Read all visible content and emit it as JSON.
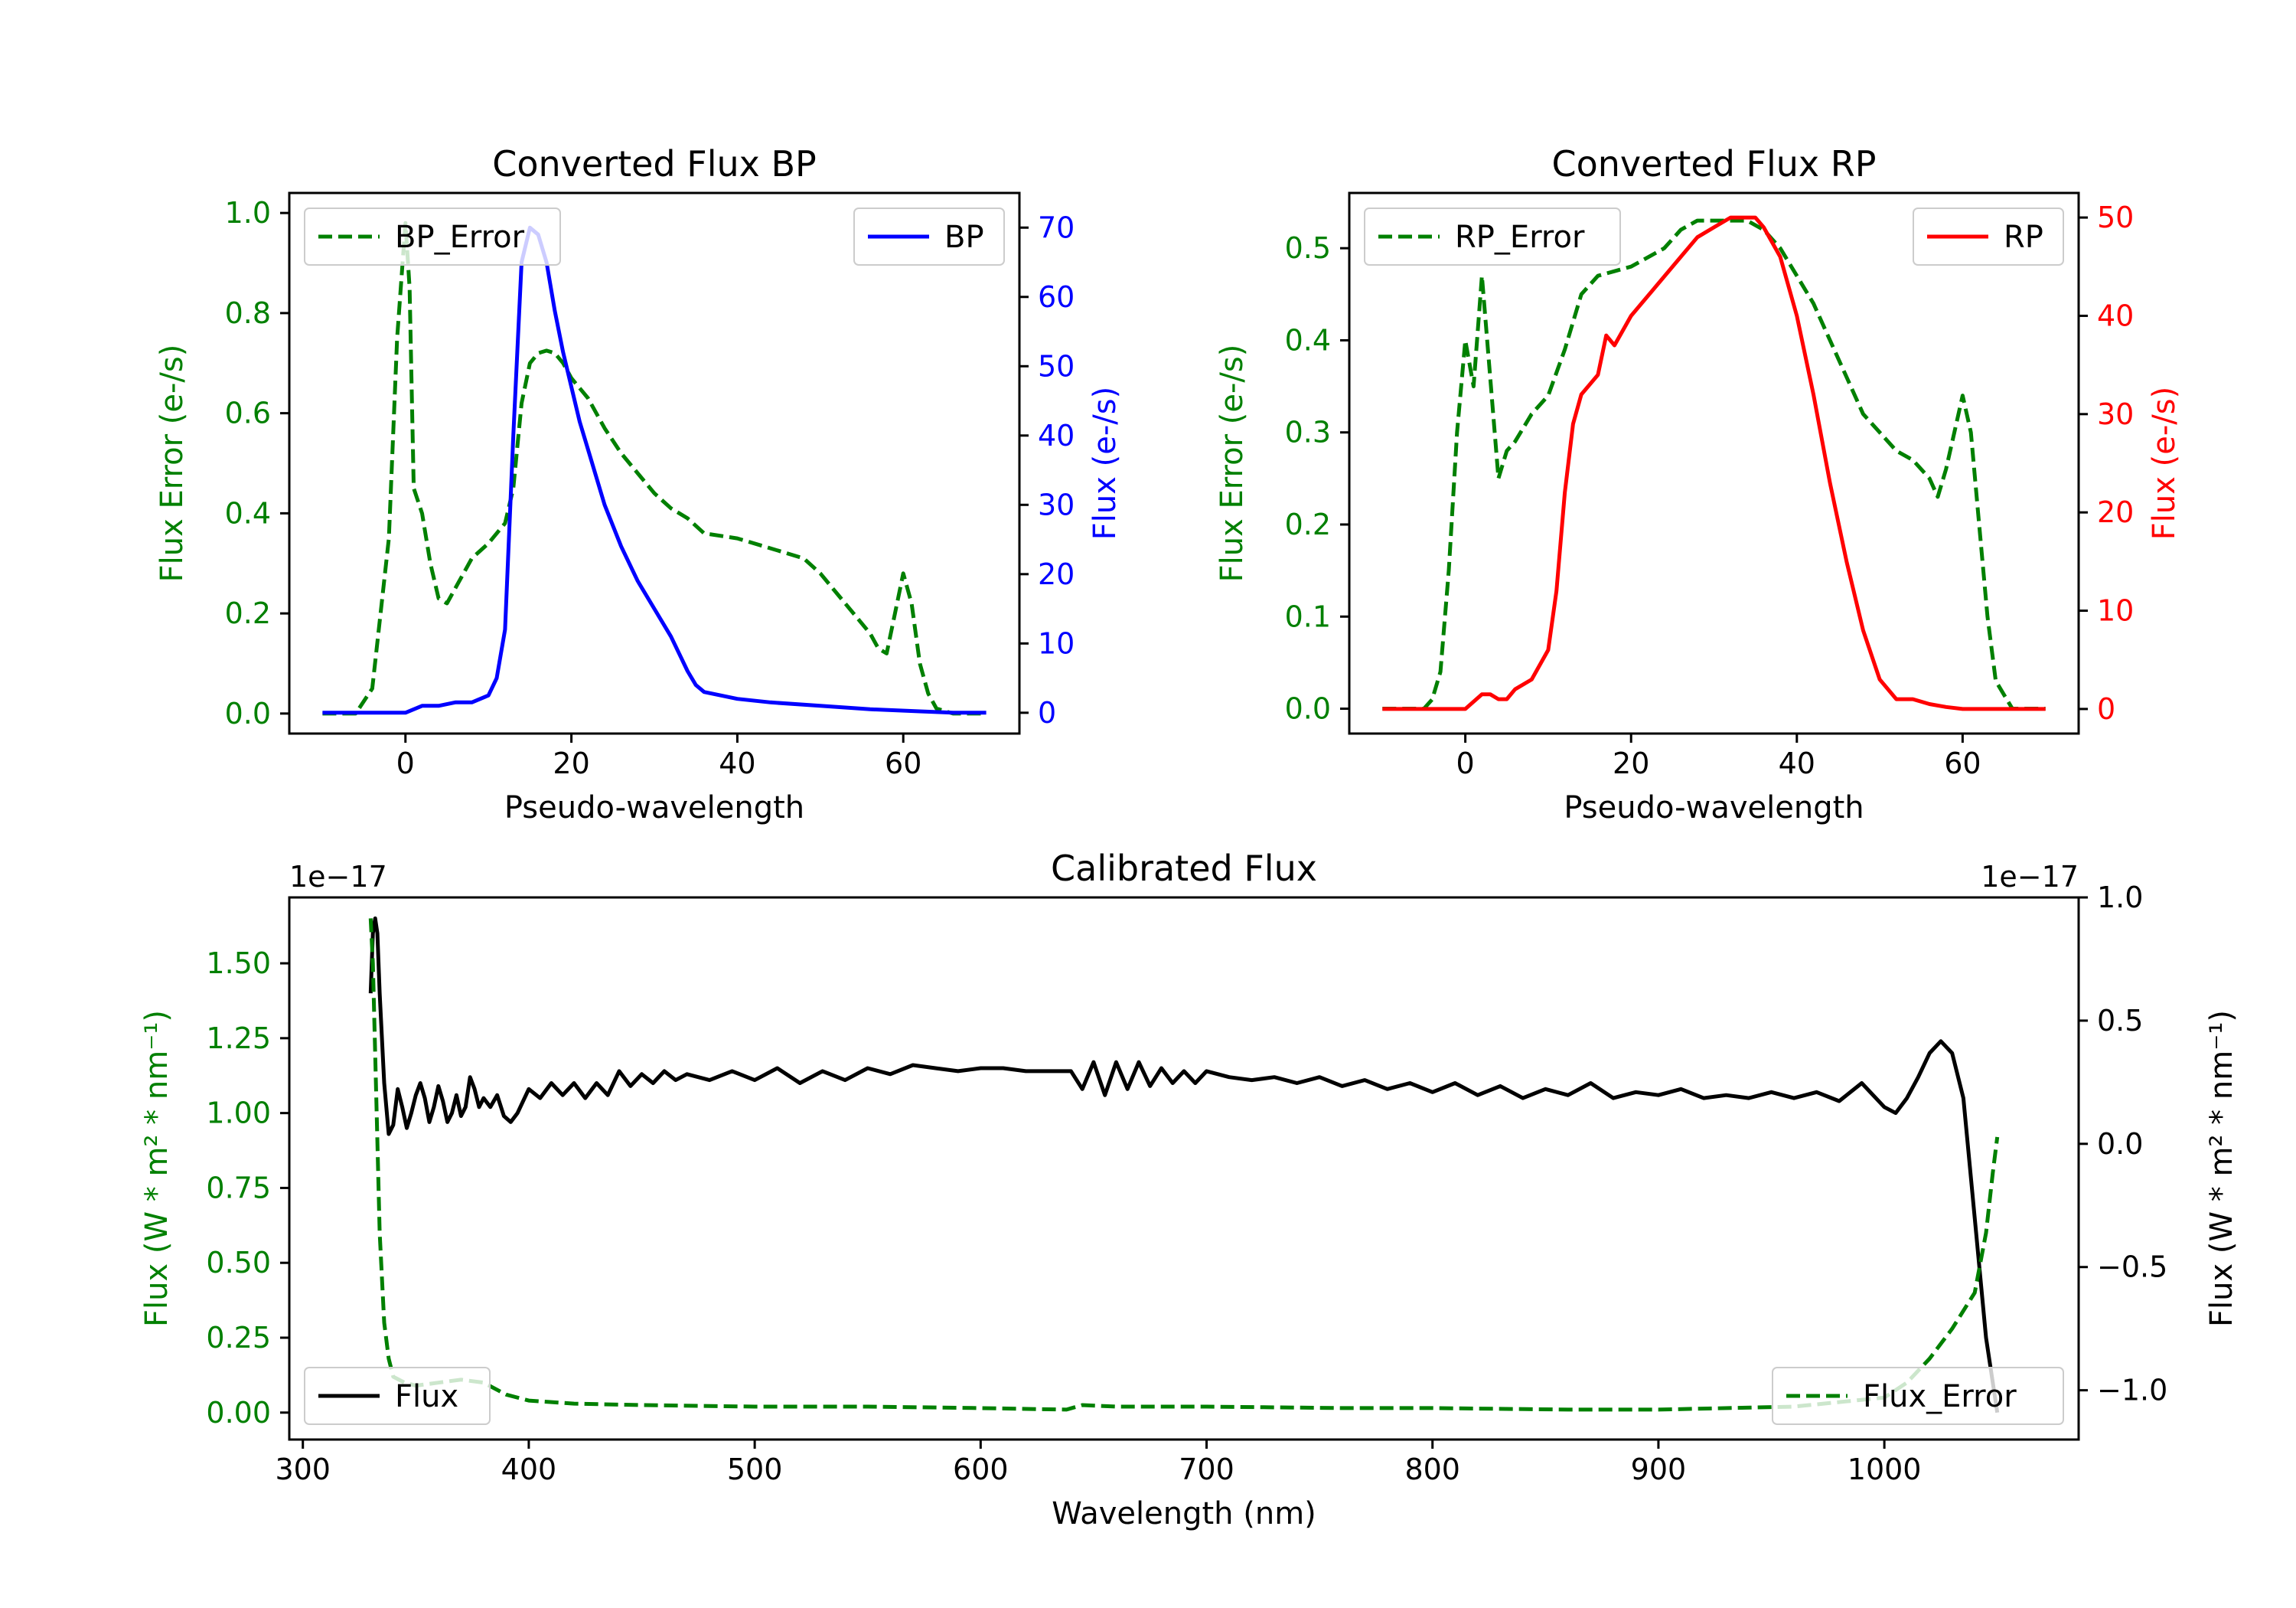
{
  "colors": {
    "error": "#008000",
    "bp": "#0000ff",
    "rp": "#ff0000",
    "flux": "#000000",
    "axis": "#000000"
  },
  "chart_data": [
    {
      "id": "bp",
      "type": "line",
      "title": "Converted Flux BP",
      "xlabel": "Pseudo-wavelength",
      "xlim": [
        -14,
        74
      ],
      "xticks": [
        0,
        20,
        40,
        60
      ],
      "left": {
        "label": "Flux Error (e-/s)",
        "ylim": [
          -0.04,
          1.04
        ],
        "ticks": [
          0.0,
          0.2,
          0.4,
          0.6,
          0.8,
          1.0
        ],
        "tick_labels": [
          "0.0",
          "0.2",
          "0.4",
          "0.6",
          "0.8",
          "1.0"
        ]
      },
      "right": {
        "label": "Flux (e-/s)",
        "ylim": [
          -3,
          75
        ],
        "ticks": [
          0,
          10,
          20,
          30,
          40,
          50,
          60,
          70
        ],
        "tick_labels": [
          "0",
          "10",
          "20",
          "30",
          "40",
          "50",
          "60",
          "70"
        ]
      },
      "series": [
        {
          "name": "BP_Error",
          "axis": "left",
          "style": "dashed",
          "legend": "top-left",
          "x": [
            -10,
            -6,
            -4,
            -2,
            -1,
            0,
            0.5,
            1,
            2,
            3,
            4,
            5,
            6,
            8,
            10,
            12,
            13,
            14,
            15,
            16,
            17,
            18,
            19,
            20,
            22,
            24,
            26,
            28,
            30,
            32,
            34,
            36,
            40,
            44,
            48,
            50,
            52,
            54,
            56,
            57,
            58,
            59,
            60,
            61,
            62,
            63,
            64,
            66,
            70
          ],
          "values": [
            0.0,
            0.0,
            0.05,
            0.35,
            0.75,
            0.98,
            0.85,
            0.45,
            0.4,
            0.3,
            0.23,
            0.22,
            0.25,
            0.31,
            0.34,
            0.38,
            0.45,
            0.62,
            0.7,
            0.72,
            0.725,
            0.72,
            0.7,
            0.67,
            0.63,
            0.57,
            0.52,
            0.48,
            0.44,
            0.41,
            0.39,
            0.36,
            0.35,
            0.33,
            0.31,
            0.28,
            0.24,
            0.2,
            0.16,
            0.13,
            0.12,
            0.2,
            0.28,
            0.22,
            0.1,
            0.04,
            0.01,
            0.0,
            0.0
          ]
        },
        {
          "name": "BP",
          "axis": "right",
          "style": "solid",
          "legend": "top-right",
          "x": [
            -10,
            -6,
            -2,
            0,
            2,
            4,
            6,
            8,
            10,
            11,
            12,
            13,
            14,
            15,
            16,
            17,
            18,
            19,
            20,
            21,
            22,
            24,
            26,
            28,
            30,
            32,
            34,
            35,
            36,
            38,
            40,
            44,
            50,
            56,
            62,
            66,
            70
          ],
          "values": [
            0,
            0,
            0,
            0,
            1,
            1,
            1.5,
            1.5,
            2.5,
            5,
            12,
            40,
            65,
            70,
            69,
            65,
            58,
            52,
            47,
            42,
            38,
            30,
            24,
            19,
            15,
            11,
            6,
            4,
            3,
            2.5,
            2,
            1.5,
            1,
            0.5,
            0.2,
            0,
            0
          ]
        }
      ]
    },
    {
      "id": "rp",
      "type": "line",
      "title": "Converted Flux RP",
      "xlabel": "Pseudo-wavelength",
      "xlim": [
        -14,
        74
      ],
      "xticks": [
        0,
        20,
        40,
        60
      ],
      "left": {
        "label": "Flux Error (e-/s)",
        "ylim": [
          -0.027,
          0.56
        ],
        "ticks": [
          0.0,
          0.1,
          0.2,
          0.3,
          0.4,
          0.5
        ],
        "tick_labels": [
          "0.0",
          "0.1",
          "0.2",
          "0.3",
          "0.4",
          "0.5"
        ]
      },
      "right": {
        "label": "Flux (e-/s)",
        "ylim": [
          -2.5,
          52.5
        ],
        "ticks": [
          0,
          10,
          20,
          30,
          40,
          50
        ],
        "tick_labels": [
          "0",
          "10",
          "20",
          "30",
          "40",
          "50"
        ]
      },
      "series": [
        {
          "name": "RP_Error",
          "axis": "left",
          "style": "dashed",
          "legend": "top-left",
          "x": [
            -10,
            -5,
            -4,
            -3,
            -2,
            -1,
            0,
            1,
            2,
            3,
            4,
            5,
            6,
            8,
            10,
            12,
            14,
            16,
            18,
            20,
            22,
            24,
            26,
            28,
            30,
            32,
            34,
            36,
            38,
            40,
            42,
            44,
            46,
            48,
            50,
            52,
            54,
            56,
            57,
            58,
            59,
            60,
            61,
            62,
            63,
            64,
            66,
            70
          ],
          "values": [
            0.0,
            0.0,
            0.01,
            0.04,
            0.15,
            0.3,
            0.4,
            0.35,
            0.47,
            0.36,
            0.25,
            0.28,
            0.29,
            0.32,
            0.34,
            0.39,
            0.45,
            0.47,
            0.475,
            0.48,
            0.49,
            0.5,
            0.52,
            0.53,
            0.53,
            0.53,
            0.53,
            0.52,
            0.5,
            0.47,
            0.44,
            0.4,
            0.36,
            0.32,
            0.3,
            0.28,
            0.27,
            0.25,
            0.23,
            0.26,
            0.3,
            0.34,
            0.3,
            0.2,
            0.1,
            0.03,
            0.0,
            0.0
          ]
        },
        {
          "name": "RP",
          "axis": "right",
          "style": "solid",
          "legend": "top-right",
          "x": [
            -10,
            -4,
            0,
            2,
            3,
            4,
            5,
            6,
            8,
            10,
            11,
            12,
            13,
            14,
            15,
            16,
            17,
            18,
            20,
            22,
            24,
            26,
            28,
            30,
            32,
            34,
            35,
            36,
            38,
            40,
            42,
            44,
            46,
            48,
            50,
            52,
            54,
            56,
            58,
            60,
            65,
            70
          ],
          "values": [
            0,
            0,
            0,
            1.5,
            1.5,
            1,
            1,
            2,
            3,
            6,
            12,
            22,
            29,
            32,
            33,
            34,
            38,
            37,
            40,
            42,
            44,
            46,
            48,
            49,
            50,
            50,
            50,
            49,
            46,
            40,
            32,
            23,
            15,
            8,
            3,
            1,
            1,
            0.5,
            0.2,
            0,
            0,
            0
          ]
        }
      ]
    },
    {
      "id": "cal",
      "type": "line",
      "title": "Calibrated Flux",
      "xlabel": "Wavelength (nm)",
      "xlim": [
        294,
        1086
      ],
      "xticks": [
        300,
        400,
        500,
        600,
        700,
        800,
        900,
        1000
      ],
      "left": {
        "label": "Flux (W * m² * nm⁻¹)",
        "offset_label": "1e−17",
        "ylim": [
          -0.09,
          1.72
        ],
        "ticks": [
          0.0,
          0.25,
          0.5,
          0.75,
          1.0,
          1.25,
          1.5
        ],
        "tick_labels": [
          "0.00",
          "0.25",
          "0.50",
          "0.75",
          "1.00",
          "1.25",
          "1.50"
        ]
      },
      "right": {
        "label": "Flux (W * m² * nm⁻¹)",
        "offset_label": "1e−17",
        "ylim": [
          -1.2,
          1.0
        ],
        "ticks": [
          -1.0,
          -0.5,
          0.0,
          0.5,
          1.0
        ],
        "tick_labels": [
          "−1.0",
          "−0.5",
          "0.0",
          "0.5",
          "1.0"
        ]
      },
      "series": [
        {
          "name": "Flux",
          "axis": "left",
          "style": "solid",
          "legend": "bottom-left",
          "x": [
            330,
            331,
            332,
            333,
            334,
            336,
            338,
            340,
            342,
            344,
            346,
            348,
            350,
            352,
            354,
            356,
            358,
            360,
            362,
            364,
            366,
            368,
            370,
            372,
            374,
            376,
            378,
            380,
            383,
            386,
            389,
            392,
            395,
            400,
            405,
            410,
            415,
            420,
            425,
            430,
            435,
            440,
            445,
            450,
            455,
            460,
            465,
            470,
            480,
            490,
            500,
            510,
            520,
            530,
            540,
            550,
            560,
            570,
            580,
            590,
            600,
            610,
            620,
            630,
            640,
            645,
            650,
            655,
            660,
            665,
            670,
            675,
            680,
            685,
            690,
            695,
            700,
            710,
            720,
            730,
            740,
            750,
            760,
            770,
            780,
            790,
            800,
            810,
            820,
            830,
            840,
            850,
            860,
            870,
            880,
            890,
            900,
            910,
            920,
            930,
            940,
            950,
            960,
            970,
            980,
            990,
            1000,
            1005,
            1010,
            1015,
            1020,
            1025,
            1030,
            1035,
            1040,
            1045,
            1050
          ],
          "values": [
            1.4,
            1.6,
            1.65,
            1.6,
            1.4,
            1.1,
            0.93,
            0.96,
            1.08,
            1.02,
            0.95,
            1.0,
            1.06,
            1.1,
            1.05,
            0.97,
            1.02,
            1.09,
            1.04,
            0.97,
            1.0,
            1.06,
            0.99,
            1.02,
            1.12,
            1.08,
            1.02,
            1.05,
            1.02,
            1.06,
            0.99,
            0.97,
            1.0,
            1.08,
            1.05,
            1.1,
            1.06,
            1.1,
            1.05,
            1.1,
            1.06,
            1.14,
            1.09,
            1.13,
            1.1,
            1.14,
            1.11,
            1.13,
            1.11,
            1.14,
            1.11,
            1.15,
            1.1,
            1.14,
            1.11,
            1.15,
            1.13,
            1.16,
            1.15,
            1.14,
            1.15,
            1.15,
            1.14,
            1.14,
            1.14,
            1.08,
            1.17,
            1.06,
            1.17,
            1.08,
            1.17,
            1.09,
            1.15,
            1.1,
            1.14,
            1.1,
            1.14,
            1.12,
            1.11,
            1.12,
            1.1,
            1.12,
            1.09,
            1.11,
            1.08,
            1.1,
            1.07,
            1.1,
            1.06,
            1.09,
            1.05,
            1.08,
            1.06,
            1.1,
            1.05,
            1.07,
            1.06,
            1.08,
            1.05,
            1.06,
            1.05,
            1.07,
            1.05,
            1.07,
            1.04,
            1.1,
            1.02,
            1.0,
            1.05,
            1.12,
            1.2,
            1.24,
            1.2,
            1.05,
            0.65,
            0.25,
            0.0
          ]
        },
        {
          "name": "Flux_Error",
          "axis": "left",
          "style": "dashed",
          "legend": "bottom-right",
          "x": [
            330,
            331,
            332,
            334,
            336,
            338,
            340,
            345,
            350,
            360,
            370,
            380,
            390,
            400,
            420,
            450,
            500,
            550,
            600,
            638,
            645,
            660,
            700,
            760,
            800,
            860,
            900,
            960,
            1000,
            1010,
            1020,
            1030,
            1040,
            1045,
            1048,
            1050
          ],
          "values": [
            1.65,
            1.5,
            1.2,
            0.6,
            0.3,
            0.18,
            0.12,
            0.1,
            0.09,
            0.1,
            0.11,
            0.1,
            0.06,
            0.04,
            0.03,
            0.025,
            0.02,
            0.02,
            0.015,
            0.01,
            0.025,
            0.02,
            0.02,
            0.015,
            0.015,
            0.01,
            0.01,
            0.02,
            0.05,
            0.1,
            0.18,
            0.28,
            0.4,
            0.6,
            0.8,
            0.92
          ]
        }
      ]
    }
  ]
}
